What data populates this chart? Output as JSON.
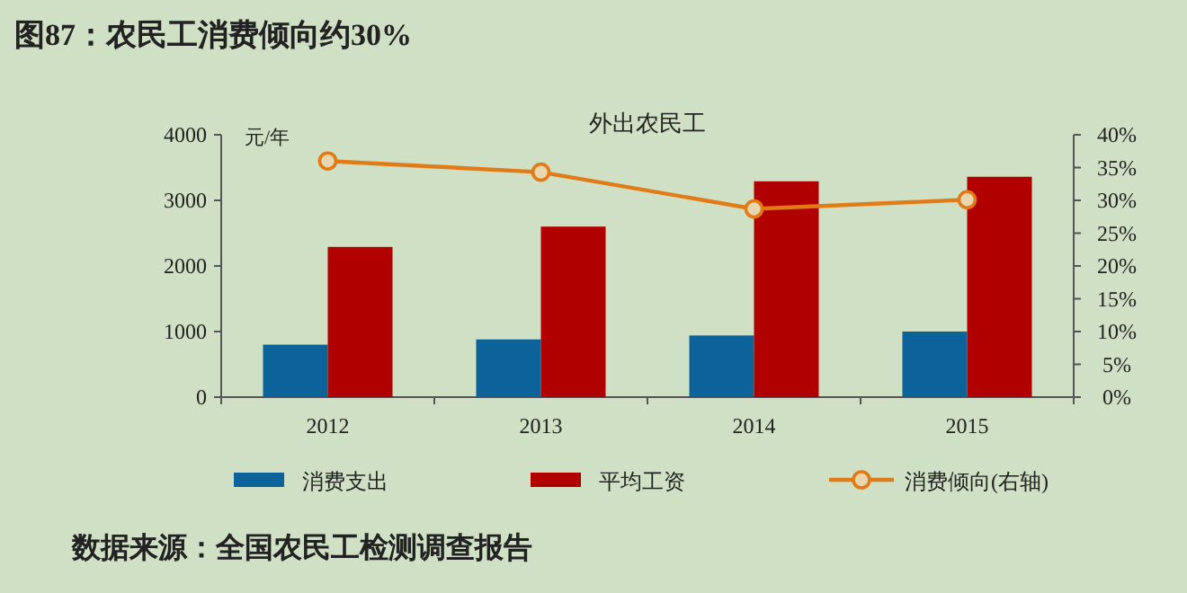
{
  "chart_data": {
    "type": "bar",
    "title": "图87：农民工消费倾向约30%",
    "subtitle": "外出农民工",
    "ylabel": "元/年",
    "categories": [
      "2012",
      "2013",
      "2014",
      "2015"
    ],
    "series": [
      {
        "name": "消费支出",
        "color": "#0b6399",
        "values": [
          800,
          880,
          940,
          1000
        ]
      },
      {
        "name": "平均工资",
        "color": "#b00000",
        "values": [
          2290,
          2600,
          3290,
          3360
        ]
      },
      {
        "name": "消费倾向(右轴)",
        "type": "line",
        "axis": "y2",
        "color": "#e07b17",
        "values": [
          36,
          34.3,
          28.7,
          30.1
        ]
      }
    ],
    "ylim": [
      0,
      4000
    ],
    "yticks": [
      0,
      1000,
      2000,
      3000,
      4000
    ],
    "y2lim": [
      0,
      40
    ],
    "y2ticks": [
      {
        "value": 0,
        "label": "0%"
      },
      {
        "value": 5,
        "label": "5%"
      },
      {
        "value": 10,
        "label": "10%"
      },
      {
        "value": 15,
        "label": "15%"
      },
      {
        "value": 20,
        "label": "20%"
      },
      {
        "value": 25,
        "label": "25%"
      },
      {
        "value": 30,
        "label": "30%"
      },
      {
        "value": 35,
        "label": "35%"
      },
      {
        "value": 40,
        "label": "40%"
      }
    ],
    "legend": "bottom",
    "marker": "circle",
    "annotations": [
      "数据来源：全国农民工检测调查报告"
    ]
  }
}
